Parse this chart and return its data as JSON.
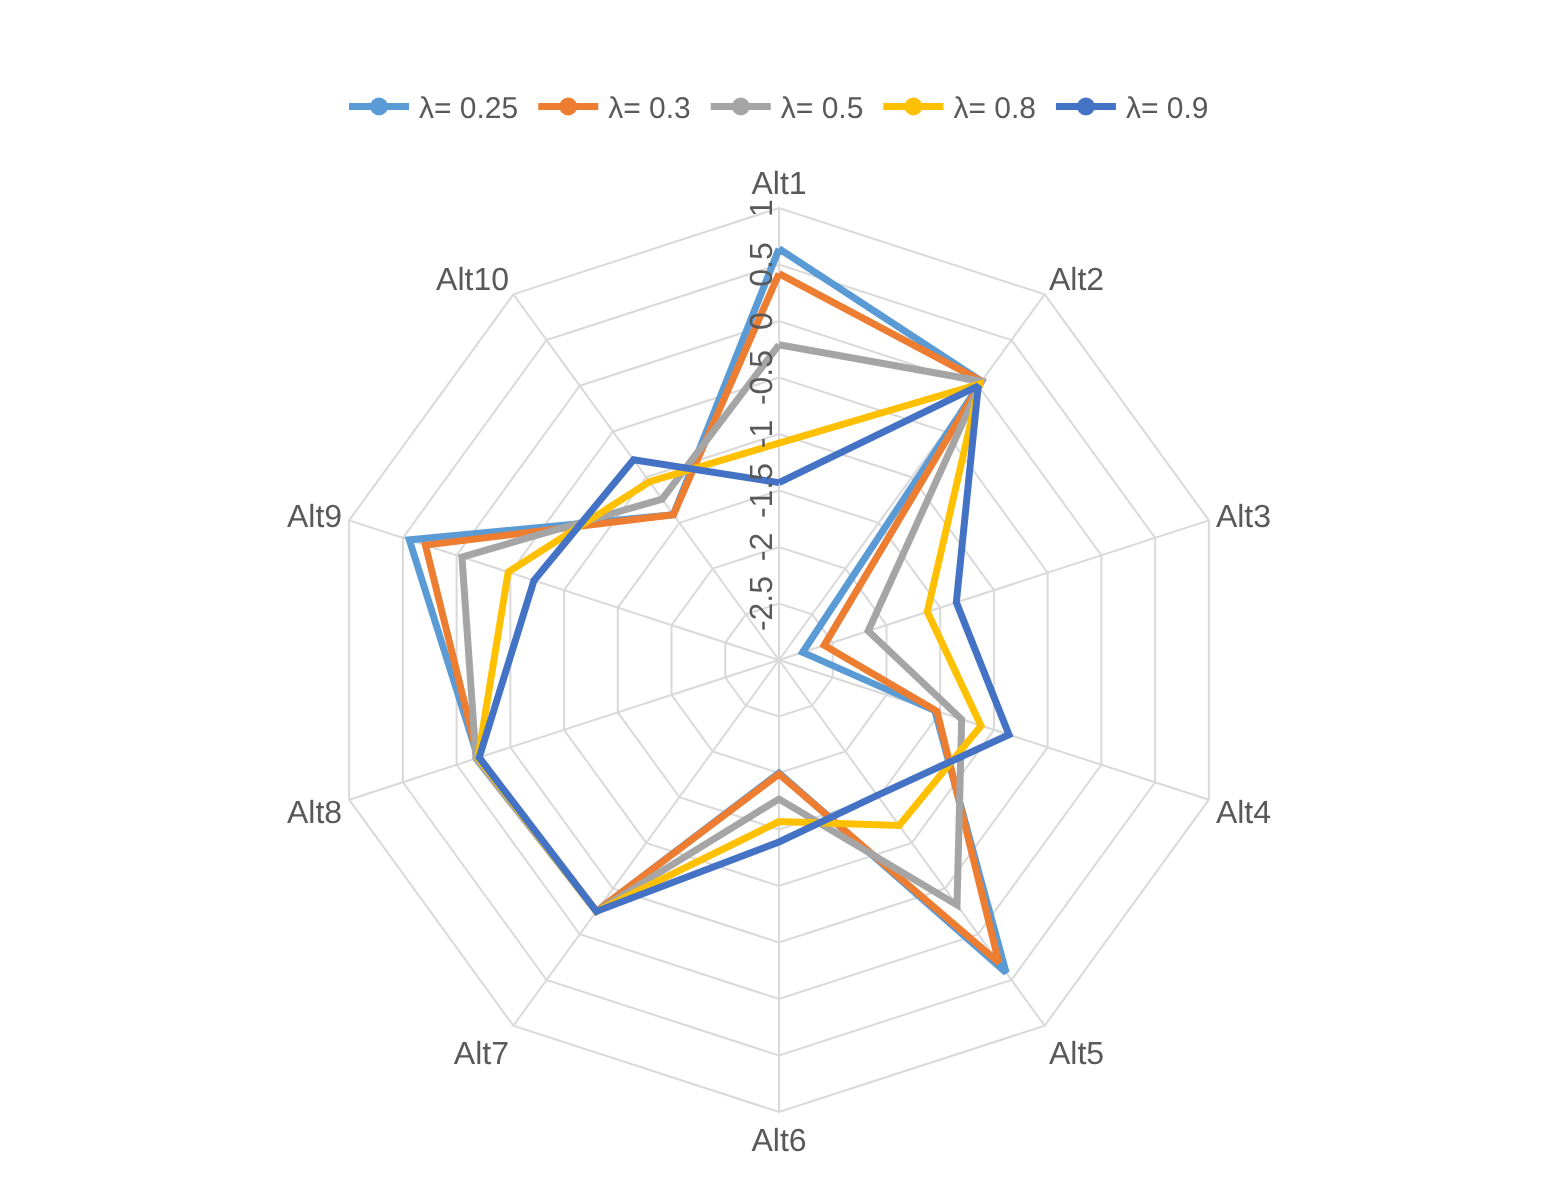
{
  "chart_data": {
    "type": "radar",
    "categories": [
      "Alt1",
      "Alt2",
      "Alt3",
      "Alt4",
      "Alt5",
      "Alt6",
      "Alt7",
      "Alt8",
      "Alt9",
      "Alt10"
    ],
    "series": [
      {
        "name": "λ= 0.25",
        "color": "#5b9bd5",
        "values": [
          0.64,
          0.05,
          -2.78,
          -1.55,
          0.42,
          -2.0,
          -0.25,
          -0.2,
          0.44,
          -1.41
        ]
      },
      {
        "name": "λ= 0.3",
        "color": "#ed7d31",
        "values": [
          0.42,
          0.05,
          -2.58,
          -1.53,
          0.31,
          -1.99,
          -0.25,
          -0.2,
          0.29,
          -1.41
        ]
      },
      {
        "name": "λ= 0.5",
        "color": "#a5a5a5",
        "values": [
          -0.21,
          0.05,
          -2.17,
          -1.3,
          -0.32,
          -1.77,
          -0.25,
          -0.18,
          -0.05,
          -1.24
        ]
      },
      {
        "name": "λ= 0.8",
        "color": "#ffc000",
        "values": [
          -1.08,
          0.02,
          -1.62,
          -1.12,
          -1.19,
          -1.57,
          -0.25,
          -0.2,
          -0.48,
          -1.05
        ]
      },
      {
        "name": "λ= 0.9",
        "color": "#4472c4",
        "values": [
          -1.43,
          0.0,
          -1.35,
          -0.86,
          -1.52,
          -1.39,
          -0.25,
          -0.21,
          -0.72,
          -0.81
        ]
      }
    ],
    "ylim": [
      -3,
      1
    ],
    "yticks": [
      -2.5,
      -2,
      -1.5,
      -1,
      -0.5,
      0,
      0.5,
      1
    ],
    "grid": true,
    "legend": "top",
    "marker": "circle",
    "line_style": "solid"
  }
}
